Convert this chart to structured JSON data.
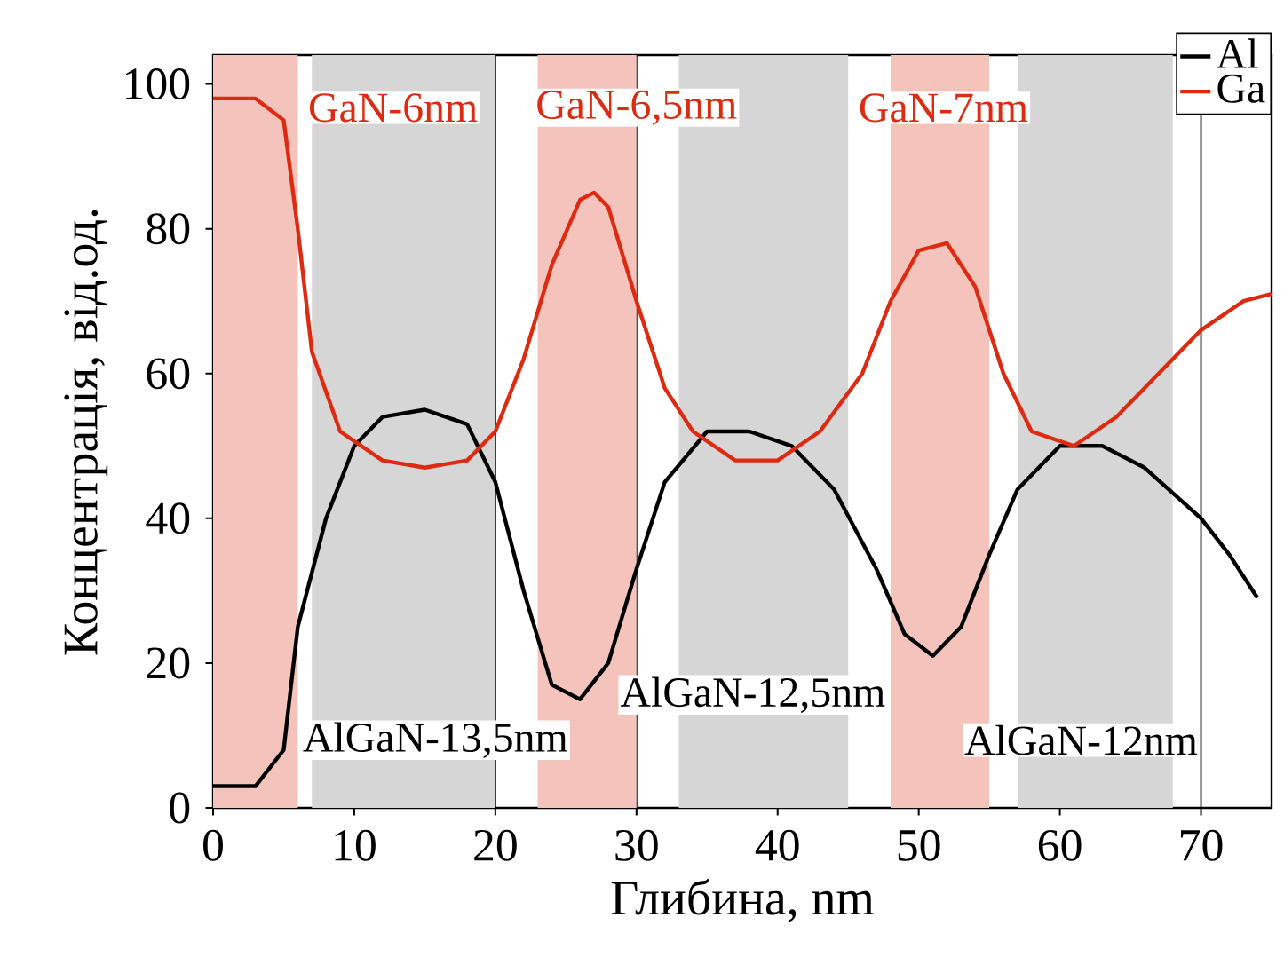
{
  "chart_data": {
    "type": "line",
    "xlabel": "Глибина, nm",
    "ylabel": "Концентрація, від.од.",
    "xlim": [
      0,
      75
    ],
    "ylim": [
      0,
      104
    ],
    "xticks": [
      0,
      10,
      20,
      30,
      40,
      50,
      60,
      70
    ],
    "yticks": [
      0,
      20,
      40,
      60,
      80,
      100
    ],
    "grid": "x",
    "legend": "top right",
    "series": [
      {
        "name": "Al",
        "color": "#000000",
        "x": [
          0,
          3,
          5,
          6,
          8,
          10,
          12,
          15,
          18,
          20,
          22,
          24,
          26,
          28,
          30,
          32,
          35,
          38,
          41,
          44,
          47,
          49,
          51,
          53,
          55,
          57,
          60,
          63,
          66,
          70,
          72,
          74
        ],
        "values": [
          3,
          3,
          8,
          25,
          40,
          50,
          54,
          55,
          53,
          45,
          30,
          17,
          15,
          20,
          33,
          45,
          52,
          52,
          50,
          44,
          33,
          24,
          21,
          25,
          35,
          44,
          50,
          50,
          47,
          40,
          35,
          29
        ]
      },
      {
        "name": "Ga",
        "color": "#dd2a10",
        "x": [
          0,
          3,
          5,
          6,
          7,
          9,
          12,
          15,
          18,
          20,
          22,
          24,
          26,
          27,
          28,
          30,
          32,
          34,
          37,
          40,
          43,
          46,
          48,
          50,
          52,
          54,
          56,
          58,
          61,
          64,
          67,
          70,
          73,
          75
        ],
        "values": [
          98,
          98,
          95,
          80,
          63,
          52,
          48,
          47,
          48,
          52,
          62,
          75,
          84,
          85,
          83,
          70,
          58,
          52,
          48,
          48,
          52,
          60,
          70,
          77,
          78,
          72,
          60,
          52,
          50,
          54,
          60,
          66,
          70,
          71
        ]
      }
    ],
    "bands": [
      {
        "axis": "x",
        "from": 0,
        "to": 6,
        "color": "#f4c4bc"
      },
      {
        "axis": "x",
        "from": 23,
        "to": 30,
        "color": "#f4c4bc"
      },
      {
        "axis": "x",
        "from": 48,
        "to": 55,
        "color": "#f4c4bc"
      },
      {
        "axis": "x",
        "from": 7,
        "to": 20,
        "color": "#d6d6d6"
      },
      {
        "axis": "x",
        "from": 33,
        "to": 45,
        "color": "#d6d6d6"
      },
      {
        "axis": "x",
        "from": 57,
        "to": 68,
        "color": "#d6d6d6"
      }
    ],
    "annotations": [
      "GaN-6nm",
      "GaN-6,5nm",
      "GaN-7nm",
      "AlGaN-13,5nm",
      "AlGaN-12,5nm",
      "AlGaN-12nm"
    ]
  }
}
